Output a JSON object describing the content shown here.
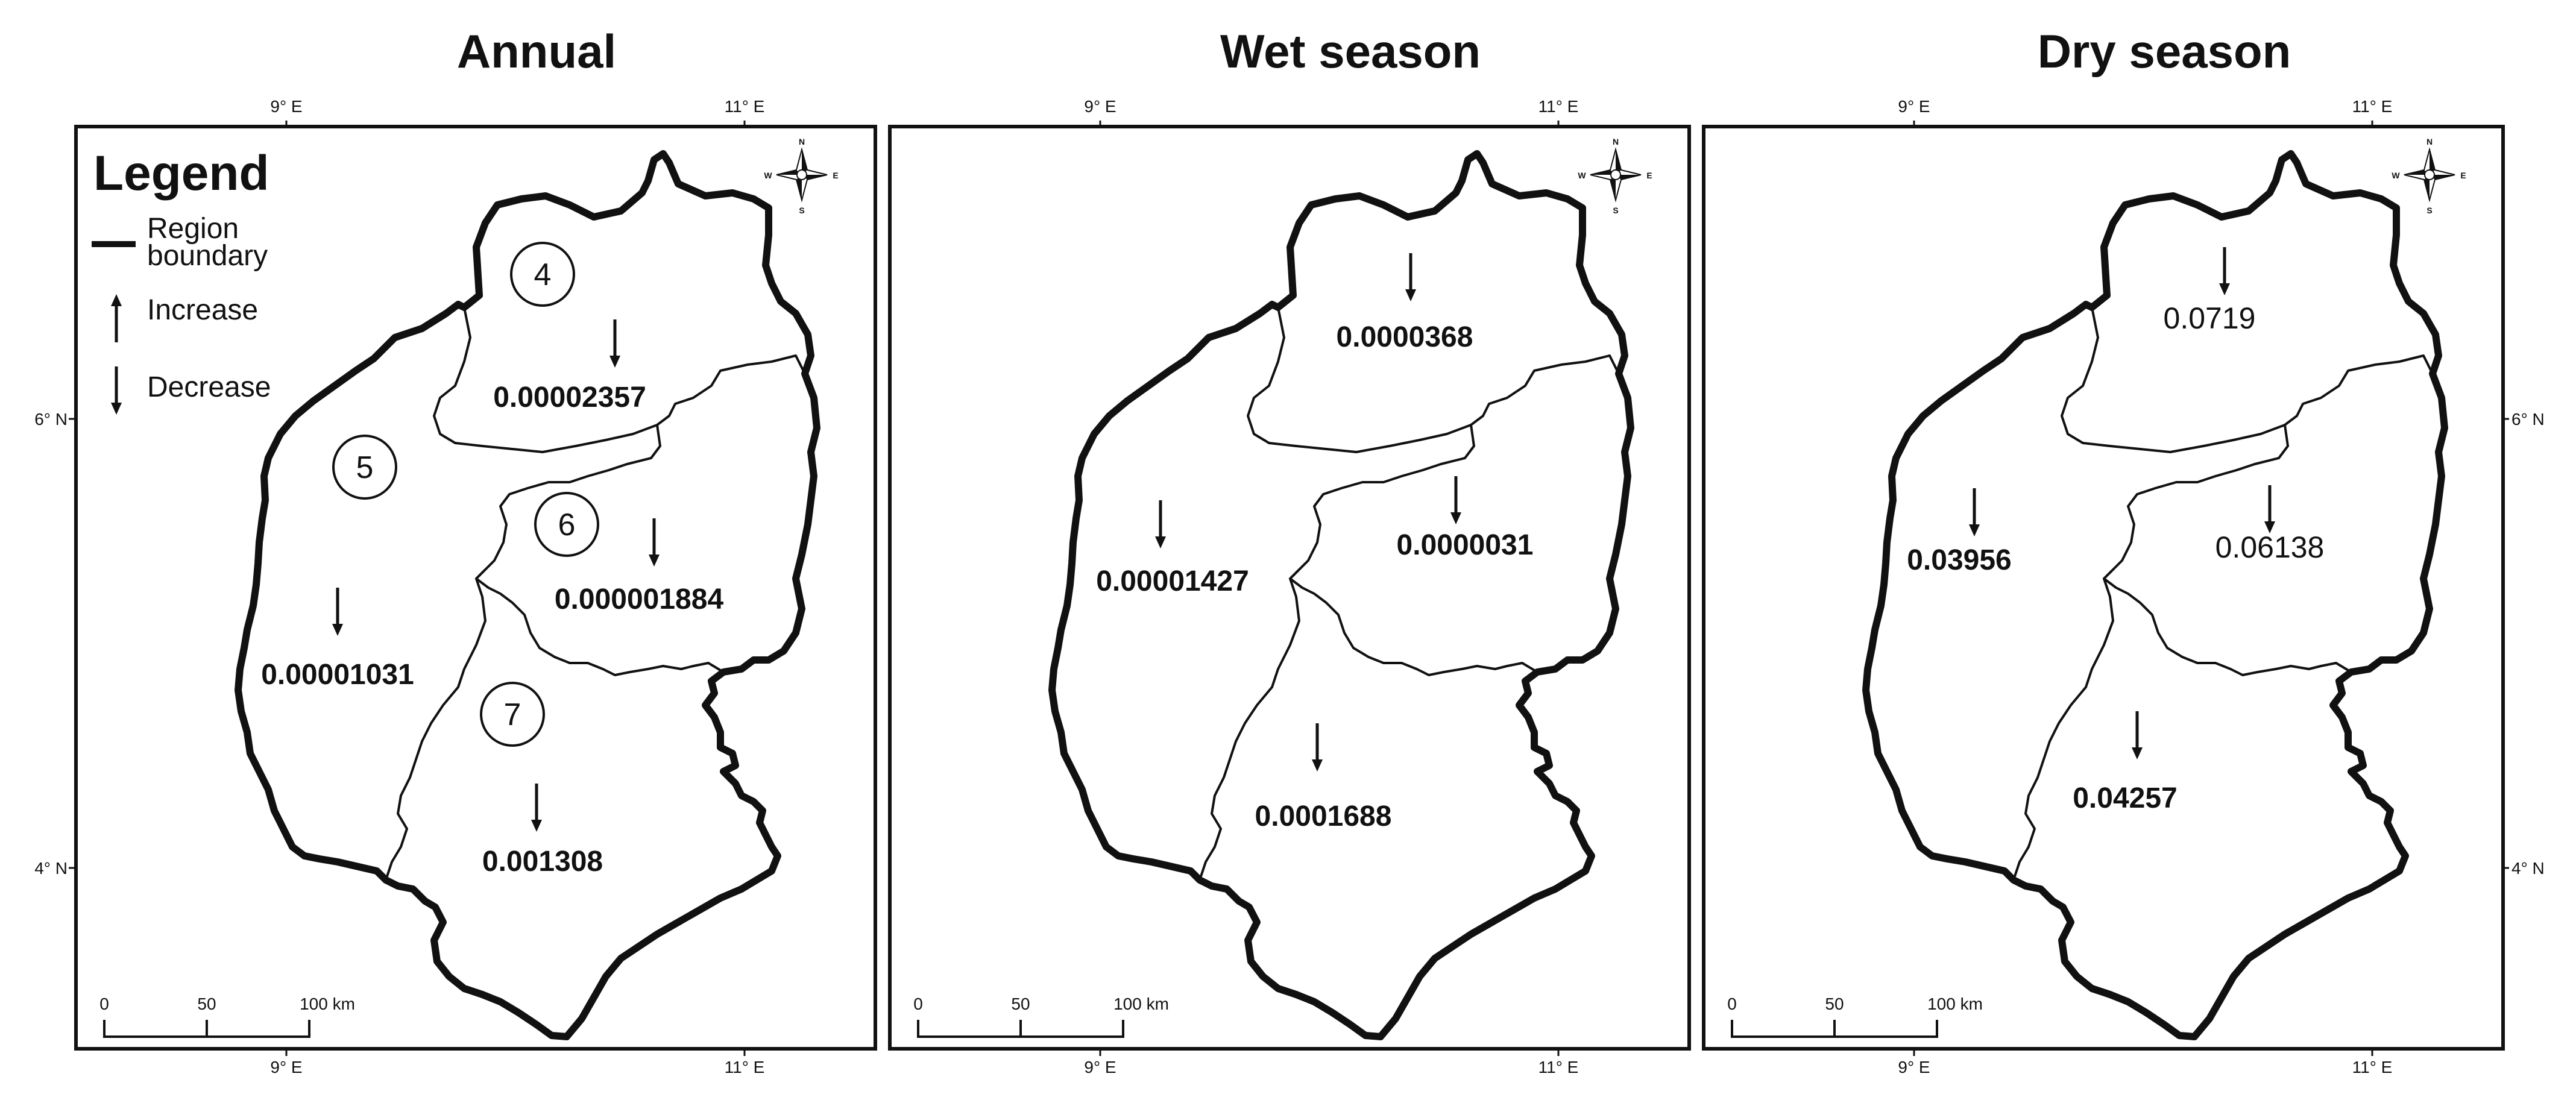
{
  "panels": [
    {
      "title": "Annual",
      "show_legend": true,
      "values": {
        "r4": "0.00002357",
        "r5": "0.00001031",
        "r6": "0.000001884",
        "r7": "0.001308"
      },
      "value_style": [
        "bold",
        "bold",
        "bold",
        "bold"
      ],
      "zone_labels": [
        "4",
        "5",
        "6",
        "7"
      ]
    },
    {
      "title": "Wet season",
      "show_legend": false,
      "values": {
        "r4": "0.0000368",
        "r5": "0.00001427",
        "r6": "0.0000031",
        "r7": "0.0001688"
      },
      "value_style": [
        "bold",
        "bold",
        "bold",
        "bold"
      ]
    },
    {
      "title": "Dry season",
      "show_legend": false,
      "values": {
        "r4": "0.0719",
        "r5": "0.03956",
        "r6": "0.06138",
        "r7": "0.04257"
      },
      "value_style": [
        "plain",
        "bold",
        "plain",
        "bold"
      ]
    }
  ],
  "axes": {
    "lon_ticks": [
      "9° E",
      "11° E"
    ],
    "lat_ticks": [
      "6° N",
      "4° N"
    ]
  },
  "legend": {
    "title": "Legend",
    "boundary_label_line1": "Region",
    "boundary_label_line2": "boundary",
    "increase_label": "Increase",
    "decrease_label": "Decrease"
  },
  "scale_bar": {
    "labels": [
      "0",
      "50",
      "100 km"
    ]
  },
  "compass": {
    "n": "N",
    "s": "S",
    "e": "E",
    "w": "W"
  },
  "trend": {
    "r4": "decrease",
    "r5": "decrease",
    "r6": "decrease",
    "r7": "decrease"
  }
}
